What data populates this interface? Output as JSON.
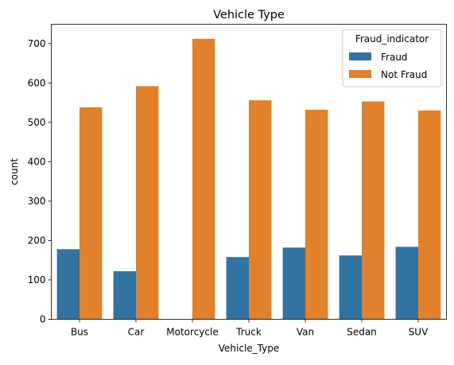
{
  "chart_data": {
    "type": "bar",
    "title": "Vehicle Type",
    "xlabel": "Vehicle_Type",
    "ylabel": "count",
    "categories": [
      "Bus",
      "Car",
      "Motorcycle",
      "Truck",
      "Van",
      "Sedan",
      "SUV"
    ],
    "series": [
      {
        "name": "Fraud",
        "color": "#3274a1",
        "values": [
          178,
          122,
          0,
          158,
          182,
          162,
          184
        ]
      },
      {
        "name": "Not Fraud",
        "color": "#e1812c",
        "values": [
          538,
          592,
          712,
          556,
          532,
          553,
          530
        ]
      }
    ],
    "ylim": [
      0,
      749
    ],
    "yticks": [
      0,
      100,
      200,
      300,
      400,
      500,
      600,
      700
    ],
    "legend": {
      "title": "Fraud_indicator",
      "placement": "top-right"
    },
    "grid": false
  }
}
